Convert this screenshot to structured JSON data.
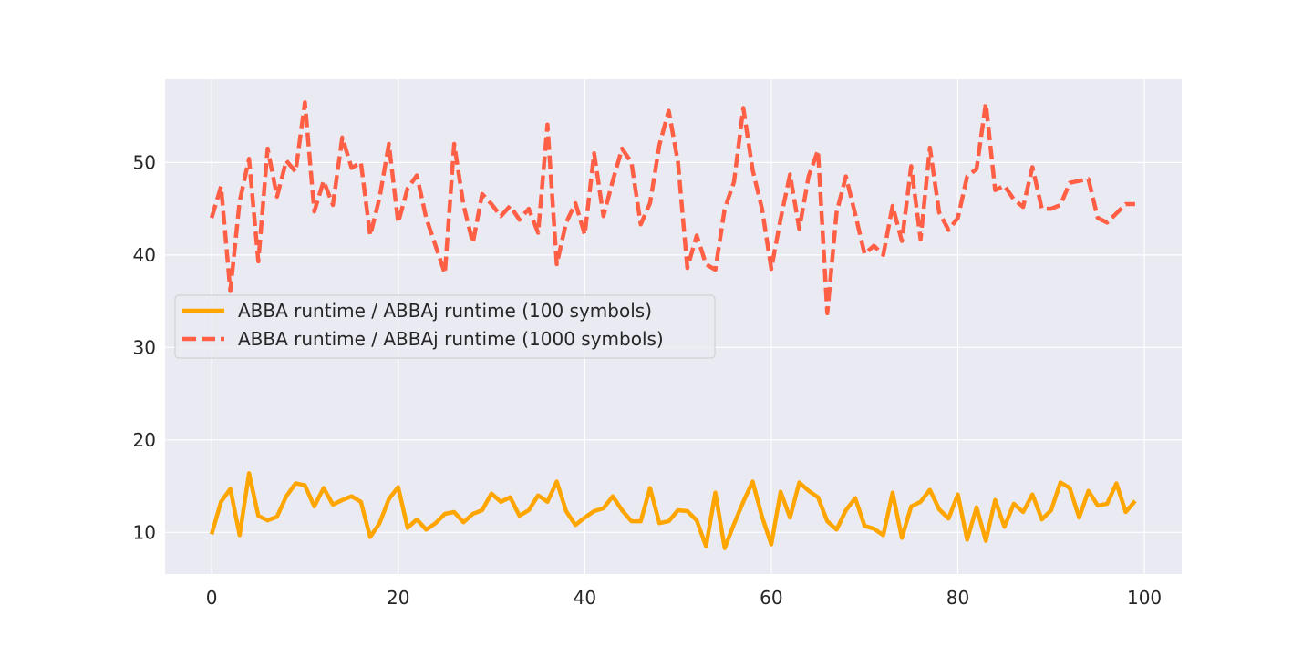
{
  "chart_data": {
    "type": "line",
    "title": "",
    "xlabel": "",
    "ylabel": "",
    "xlim": [
      -5,
      104
    ],
    "ylim": [
      5.5,
      59
    ],
    "xticks": [
      0,
      20,
      40,
      60,
      80,
      100
    ],
    "yticks": [
      10,
      20,
      30,
      40,
      50
    ],
    "grid": true,
    "legend_placement": "center-left",
    "series": [
      {
        "name": "ABBA runtime / ABBAj runtime (100 symbols)",
        "color": "#ffa500",
        "dash": "solid",
        "x": [
          0,
          1,
          2,
          3,
          4,
          5,
          6,
          7,
          8,
          9,
          10,
          11,
          12,
          13,
          14,
          15,
          16,
          17,
          18,
          19,
          20,
          21,
          22,
          23,
          24,
          25,
          26,
          27,
          28,
          29,
          30,
          31,
          32,
          33,
          34,
          35,
          36,
          37,
          38,
          39,
          40,
          41,
          42,
          43,
          44,
          45,
          46,
          47,
          48,
          49,
          50,
          51,
          52,
          53,
          54,
          55,
          56,
          57,
          58,
          59,
          60,
          61,
          62,
          63,
          64,
          65,
          66,
          67,
          68,
          69,
          70,
          71,
          72,
          73,
          74,
          75,
          76,
          77,
          78,
          79,
          80,
          81,
          82,
          83,
          84,
          85,
          86,
          87,
          88,
          89,
          90,
          91,
          92,
          93,
          94,
          95,
          96,
          97,
          98,
          99
        ],
        "values": [
          9.8,
          13.3,
          14.7,
          9.7,
          16.4,
          11.8,
          11.3,
          11.7,
          13.9,
          15.3,
          15.1,
          12.8,
          14.8,
          13.0,
          13.5,
          13.9,
          13.3,
          9.5,
          11.0,
          13.6,
          14.9,
          10.5,
          11.4,
          10.3,
          11.0,
          12.0,
          12.2,
          11.1,
          12.0,
          12.4,
          14.2,
          13.3,
          13.8,
          11.8,
          12.4,
          14.0,
          13.3,
          15.5,
          12.3,
          10.8,
          11.6,
          12.3,
          12.6,
          13.9,
          12.4,
          11.2,
          11.2,
          14.8,
          11.0,
          11.2,
          12.4,
          12.3,
          11.3,
          8.5,
          14.3,
          8.3,
          10.9,
          13.3,
          15.5,
          11.7,
          8.7,
          14.4,
          11.6,
          15.4,
          14.5,
          13.8,
          11.2,
          10.3,
          12.4,
          13.7,
          10.7,
          10.4,
          9.7,
          14.3,
          9.4,
          12.8,
          13.3,
          14.6,
          12.5,
          11.5,
          14.1,
          9.2,
          12.7,
          9.1,
          13.5,
          10.6,
          13.1,
          12.2,
          14.1,
          11.4,
          12.4,
          15.4,
          14.8,
          11.6,
          14.5,
          12.9,
          13.1,
          15.3,
          12.2,
          13.4
        ]
      },
      {
        "name": "ABBA runtime / ABBAj runtime (1000 symbols)",
        "color": "#ff5f45",
        "dash": "dashed",
        "x": [
          0,
          1,
          2,
          3,
          4,
          5,
          6,
          7,
          8,
          9,
          10,
          11,
          12,
          13,
          14,
          15,
          16,
          17,
          18,
          19,
          20,
          21,
          22,
          23,
          24,
          25,
          26,
          27,
          28,
          29,
          30,
          31,
          32,
          33,
          34,
          35,
          36,
          37,
          38,
          39,
          40,
          41,
          42,
          43,
          44,
          45,
          46,
          47,
          48,
          49,
          50,
          51,
          52,
          53,
          54,
          55,
          56,
          57,
          58,
          59,
          60,
          61,
          62,
          63,
          64,
          65,
          66,
          67,
          68,
          69,
          70,
          71,
          72,
          73,
          74,
          75,
          76,
          77,
          78,
          79,
          80,
          81,
          82,
          83,
          84,
          85,
          86,
          87,
          88,
          89,
          90,
          91,
          92,
          93,
          94,
          95,
          96,
          97,
          98,
          99
        ],
        "values": [
          44.0,
          47.4,
          36.1,
          45.8,
          50.4,
          39.3,
          51.5,
          46.3,
          50.2,
          49.0,
          56.5,
          44.7,
          48.0,
          45.4,
          52.7,
          49.4,
          50.0,
          42.1,
          46.2,
          52.0,
          43.5,
          47.2,
          48.6,
          44.0,
          41.0,
          38.0,
          52.0,
          45.4,
          41.3,
          46.6,
          45.5,
          44.2,
          45.3,
          43.8,
          45.0,
          42.4,
          54.1,
          39.0,
          43.5,
          45.6,
          42.2,
          51.0,
          44.2,
          48.0,
          51.5,
          50.0,
          43.3,
          45.6,
          51.9,
          55.6,
          50.0,
          38.6,
          42.1,
          39.0,
          38.4,
          45.0,
          47.9,
          55.9,
          49.2,
          45.0,
          38.5,
          43.9,
          48.7,
          42.8,
          48.5,
          51.3,
          33.7,
          44.6,
          48.5,
          44.4,
          40.1,
          41.0,
          40.0,
          45.3,
          41.5,
          49.6,
          41.7,
          51.6,
          44.6,
          42.7,
          44.0,
          48.5,
          49.3,
          56.4,
          47.0,
          47.5,
          46.0,
          45.2,
          49.5,
          45.0,
          45.0,
          45.4,
          47.8,
          48.0,
          48.2,
          44.0,
          43.5,
          44.5,
          45.5,
          45.5
        ]
      }
    ]
  }
}
